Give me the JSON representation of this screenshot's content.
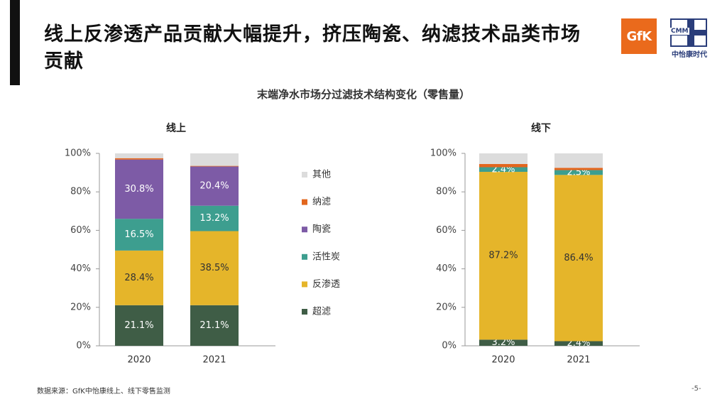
{
  "header": {
    "title": "线上反渗透产品贡献大幅提升，挤压陶瓷、纳滤技术品类市场贡献",
    "logo_gfk": "GfK",
    "logo_cmm": "CMM",
    "logo_cmm_name": "中怡康时代"
  },
  "chart_title": "末端净水市场分过滤技术结构变化（零售量）",
  "colors": {
    "其他": "#dcdcdc",
    "纳滤": "#e2661e",
    "陶瓷": "#7d5ba6",
    "活性炭": "#3d9e8f",
    "反渗透": "#e5b52a",
    "超滤": "#3f5d46"
  },
  "chart_data": [
    {
      "type": "bar",
      "stacked": true,
      "title": "线上",
      "categories": [
        "2020",
        "2021"
      ],
      "ylim": [
        0,
        100
      ],
      "yticks": [
        "0%",
        "20%",
        "40%",
        "60%",
        "80%",
        "100%"
      ],
      "series": [
        {
          "name": "超滤",
          "values": [
            21.1,
            21.1
          ],
          "labels": [
            "21.1%",
            "21.1%"
          ]
        },
        {
          "name": "反渗透",
          "values": [
            28.4,
            38.5
          ],
          "labels": [
            "28.4%",
            "38.5%"
          ]
        },
        {
          "name": "活性炭",
          "values": [
            16.5,
            13.2
          ],
          "labels": [
            "16.5%",
            "13.2%"
          ]
        },
        {
          "name": "陶瓷",
          "values": [
            30.8,
            20.4
          ],
          "labels": [
            "30.8%",
            "20.4%"
          ]
        },
        {
          "name": "纳滤",
          "values": [
            0.7,
            0.3
          ],
          "labels": [
            "",
            ""
          ]
        },
        {
          "name": "其他",
          "values": [
            2.5,
            6.5
          ],
          "labels": [
            "",
            ""
          ]
        }
      ]
    },
    {
      "type": "bar",
      "stacked": true,
      "title": "线下",
      "categories": [
        "2020",
        "2021"
      ],
      "ylim": [
        0,
        100
      ],
      "yticks": [
        "0%",
        "20%",
        "40%",
        "60%",
        "80%",
        "100%"
      ],
      "series": [
        {
          "name": "超滤",
          "values": [
            3.2,
            2.4
          ],
          "labels": [
            "3.2%",
            "2.4%"
          ]
        },
        {
          "name": "反渗透",
          "values": [
            87.2,
            86.4
          ],
          "labels": [
            "87.2%",
            "86.4%"
          ]
        },
        {
          "name": "活性炭",
          "values": [
            2.4,
            2.5
          ],
          "labels": [
            "2.4%",
            "2.5%"
          ]
        },
        {
          "name": "陶瓷",
          "values": [
            0,
            0
          ],
          "labels": [
            "",
            ""
          ]
        },
        {
          "name": "纳滤",
          "values": [
            1.7,
            1.2
          ],
          "labels": [
            "",
            ""
          ]
        },
        {
          "name": "其他",
          "values": [
            5.5,
            7.5
          ],
          "labels": [
            "",
            ""
          ]
        }
      ]
    }
  ],
  "legend": [
    "其他",
    "纳滤",
    "陶瓷",
    "活性炭",
    "反渗透",
    "超滤"
  ],
  "footer": {
    "source": "数据来源：GfK中怡康线上、线下零售监测",
    "page": "-5-"
  }
}
